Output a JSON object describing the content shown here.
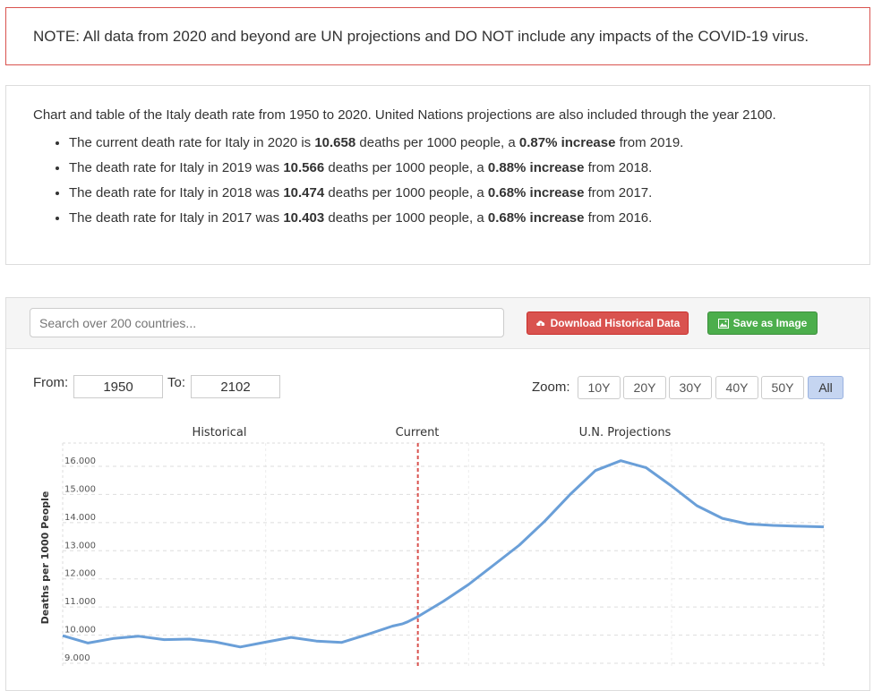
{
  "note": "NOTE: All data from 2020 and beyond are UN projections and DO NOT include any impacts of the COVID-19 virus.",
  "summary": {
    "intro": "Chart and table of the Italy death rate from 1950 to 2020. United Nations projections are also included through the year 2100.",
    "items": [
      {
        "pre": "The current death rate for Italy in 2020 is ",
        "value": "10.658",
        "mid": " deaths per 1000 people, a ",
        "change": "0.87% increase",
        "post": " from 2019."
      },
      {
        "pre": "The death rate for Italy in 2019 was ",
        "value": "10.566",
        "mid": " deaths per 1000 people, a ",
        "change": "0.88% increase",
        "post": " from 2018."
      },
      {
        "pre": "The death rate for Italy in 2018 was ",
        "value": "10.474",
        "mid": " deaths per 1000 people, a ",
        "change": "0.68% increase",
        "post": " from 2017."
      },
      {
        "pre": "The death rate for Italy in 2017 was ",
        "value": "10.403",
        "mid": " deaths per 1000 people, a ",
        "change": "0.68% increase",
        "post": " from 2016."
      }
    ]
  },
  "toolbar": {
    "search_placeholder": "Search over 200 countries...",
    "download_label": "Download Historical Data",
    "save_label": "Save as Image"
  },
  "range": {
    "from_label": "From:",
    "from_value": "1950",
    "to_label": "To:",
    "to_value": "2102"
  },
  "zoom": {
    "label": "Zoom:",
    "options": [
      "10Y",
      "20Y",
      "30Y",
      "40Y",
      "50Y",
      "All"
    ],
    "active": "All"
  },
  "colors": {
    "line": "#6a9fd8",
    "current_marker": "#d9534f",
    "grid": "#dddddd"
  },
  "chart_data": {
    "type": "line",
    "ylabel": "Deaths per 1000 People",
    "ylim": [
      9,
      17
    ],
    "yticks": [
      "9.000",
      "10.000",
      "11.000",
      "12.000",
      "13.000",
      "14.000",
      "15.000",
      "16.000"
    ],
    "band_labels": [
      "Historical",
      "Current",
      "U.N. Projections"
    ],
    "current_year": 2020,
    "x_range": [
      1950,
      2102
    ],
    "series": [
      {
        "x": [
          1950,
          1955,
          1960,
          1965,
          1970,
          1975,
          1980,
          1985,
          1990,
          1995,
          2000,
          2005,
          2010,
          2015,
          2017,
          2018,
          2019,
          2020,
          2025,
          2030,
          2035,
          2040,
          2045,
          2050,
          2055,
          2060,
          2065,
          2070,
          2075,
          2080,
          2085,
          2090,
          2095,
          2100
        ],
        "y": [
          9.98,
          9.72,
          9.88,
          9.96,
          9.84,
          9.86,
          9.76,
          9.58,
          9.75,
          9.92,
          9.79,
          9.74,
          10.02,
          10.32,
          10.403,
          10.474,
          10.566,
          10.658,
          11.2,
          11.8,
          12.5,
          13.2,
          14.05,
          15.0,
          15.85,
          16.2,
          15.95,
          15.3,
          14.6,
          14.15,
          13.95,
          13.9,
          13.87,
          13.85
        ]
      }
    ]
  }
}
